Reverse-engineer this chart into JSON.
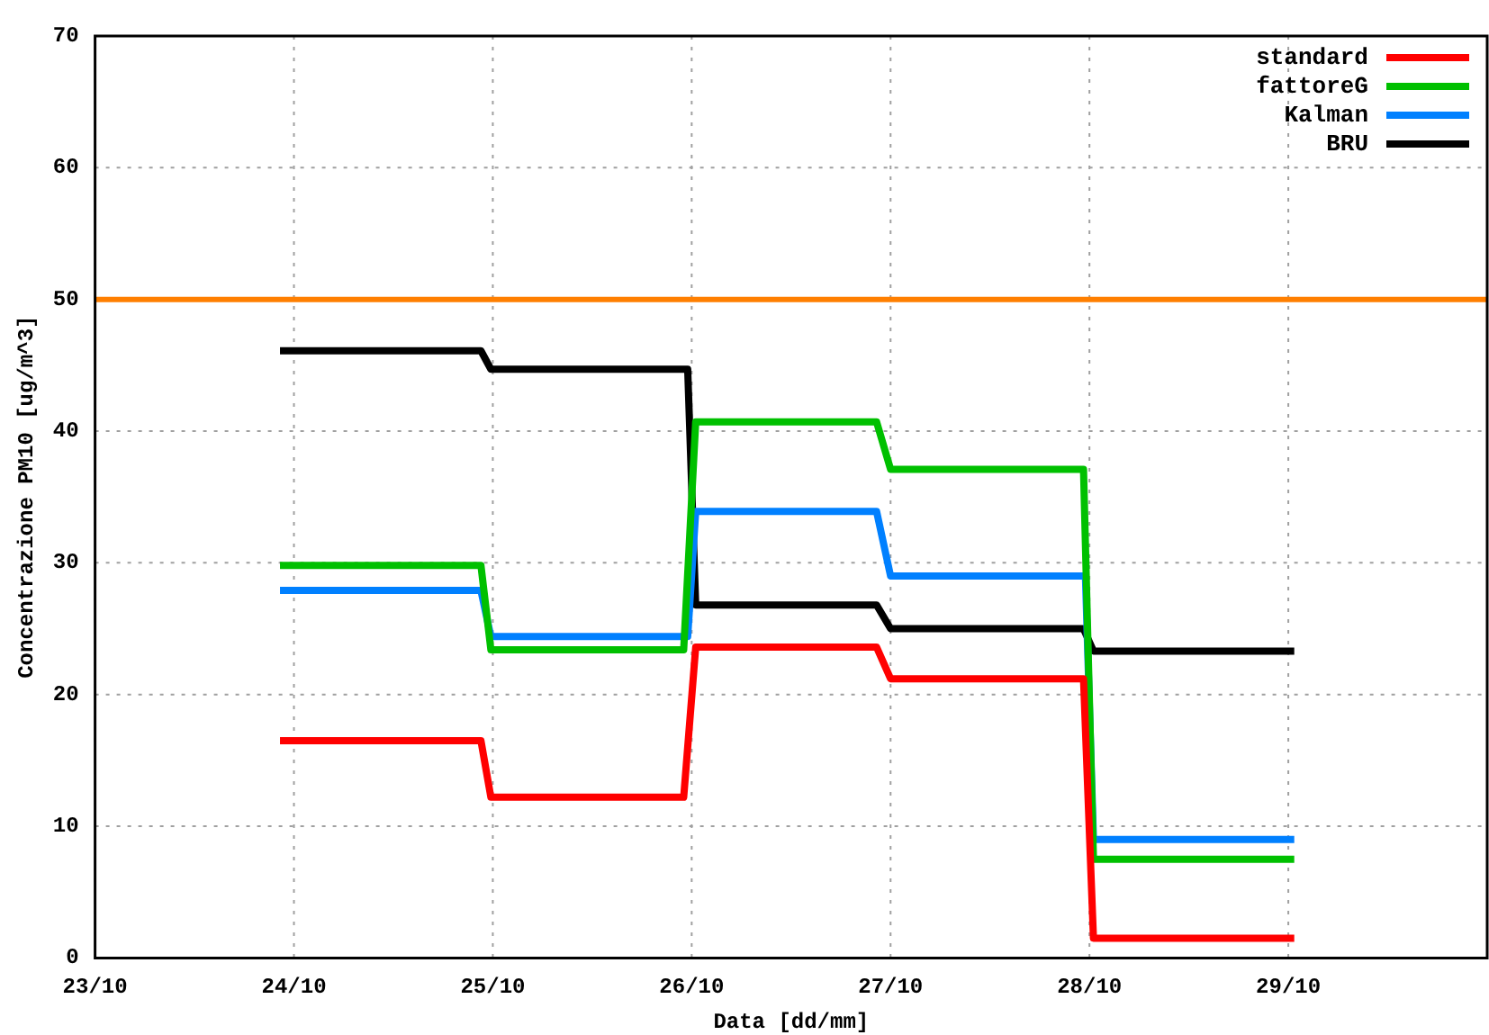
{
  "chart_data": {
    "type": "line",
    "xlabel": "Data [dd/mm]",
    "ylabel": "Concentrazione PM10 [ug/m^3]",
    "xlim": [
      "--10-23",
      "--10-30"
    ],
    "xticks": [
      {
        "value": "--10-23",
        "label": "23/10"
      },
      {
        "value": "--10-24",
        "label": "24/10"
      },
      {
        "value": "--10-25",
        "label": "25/10"
      },
      {
        "value": "--10-26",
        "label": "26/10"
      },
      {
        "value": "--10-27",
        "label": "27/10"
      },
      {
        "value": "--10-28",
        "label": "28/10"
      },
      {
        "value": "--10-29",
        "label": "29/10"
      }
    ],
    "ylim": [
      0,
      70
    ],
    "yticks": [
      0,
      10,
      20,
      30,
      40,
      50,
      60,
      70
    ],
    "grid": true,
    "legend": "top right",
    "marker": "none",
    "line_style": "solid",
    "ref_lines": [
      {
        "axis": "y",
        "value": 50,
        "color": "#ff7f00"
      }
    ],
    "series": [
      {
        "name": "standard",
        "color": "#ff0000",
        "x": [
          "--10-23T22:19",
          "--10-24T22:34",
          "--10-24T23:46",
          "--10-25T23:02",
          "--10-26T00:29",
          "--10-26T22:19",
          "--10-27T00:00",
          "--10-27T23:17",
          "--10-28T00:29",
          "--10-29T00:43"
        ],
        "values": [
          16.5,
          16.5,
          12.2,
          12.2,
          23.6,
          23.6,
          21.2,
          21.2,
          1.5,
          1.5
        ]
      },
      {
        "name": "fattoreG",
        "color": "#00c000",
        "x": [
          "--10-23T22:19",
          "--10-24T22:34",
          "--10-24T23:46",
          "--10-25T23:02",
          "--10-26T00:29",
          "--10-26T22:19",
          "--10-27T00:00",
          "--10-27T23:17",
          "--10-28T00:29",
          "--10-29T00:43"
        ],
        "values": [
          29.8,
          29.8,
          23.4,
          23.4,
          40.7,
          40.7,
          37.1,
          37.1,
          7.5,
          7.5
        ]
      },
      {
        "name": "Kalman",
        "color": "#0080ff",
        "x": [
          "--10-23T22:19",
          "--10-24T22:34",
          "--10-24T23:46",
          "--10-25T23:31",
          "--10-26T00:29",
          "--10-26T22:19",
          "--10-27T00:00",
          "--10-27T23:31",
          "--10-28T00:29",
          "--10-29T00:43"
        ],
        "values": [
          27.9,
          27.9,
          24.4,
          24.4,
          33.9,
          33.9,
          29.0,
          29.0,
          9.0,
          9.0
        ]
      },
      {
        "name": "BRU",
        "color": "#000000",
        "x": [
          "--10-23T22:19",
          "--10-24T22:34",
          "--10-24T23:46",
          "--10-25T23:31",
          "--10-26T00:29",
          "--10-26T22:19",
          "--10-27T00:00",
          "--10-27T23:17",
          "--10-28T00:29",
          "--10-29T00:43"
        ],
        "values": [
          46.1,
          46.1,
          44.7,
          44.7,
          26.8,
          26.8,
          25.0,
          25.0,
          23.3,
          23.3
        ]
      }
    ]
  }
}
